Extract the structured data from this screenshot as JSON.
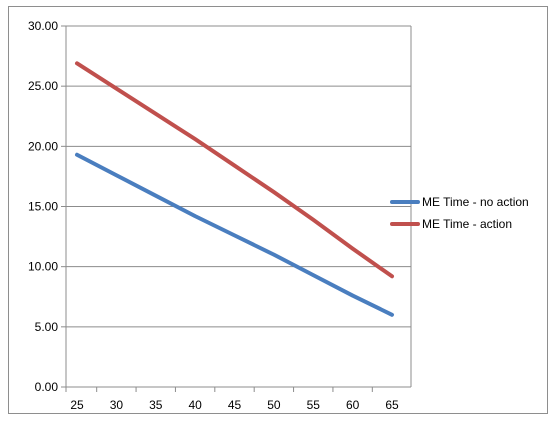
{
  "chart_data": {
    "type": "line",
    "title": "",
    "xlabel": "",
    "ylabel": "",
    "x": [
      25,
      30,
      35,
      40,
      45,
      50,
      55,
      60,
      65
    ],
    "xlim": [
      25,
      65
    ],
    "ylim": [
      0,
      30
    ],
    "y_ticks": [
      "0.00",
      "5.00",
      "10.00",
      "15.00",
      "20.00",
      "25.00",
      "30.00"
    ],
    "x_ticks": [
      "25",
      "30",
      "35",
      "40",
      "45",
      "50",
      "55",
      "60",
      "65"
    ],
    "grid": "horizontal",
    "legend_position": "right",
    "series": [
      {
        "name": "ME Time - no action",
        "color": "#4a7ebf",
        "values": [
          19.3,
          17.6,
          15.9,
          14.2,
          12.6,
          11.0,
          9.3,
          7.6,
          6.0
        ]
      },
      {
        "name": "ME Time - action",
        "color": "#c0504d",
        "values": [
          26.9,
          24.8,
          22.7,
          20.6,
          18.4,
          16.2,
          13.9,
          11.5,
          9.2
        ]
      }
    ]
  }
}
